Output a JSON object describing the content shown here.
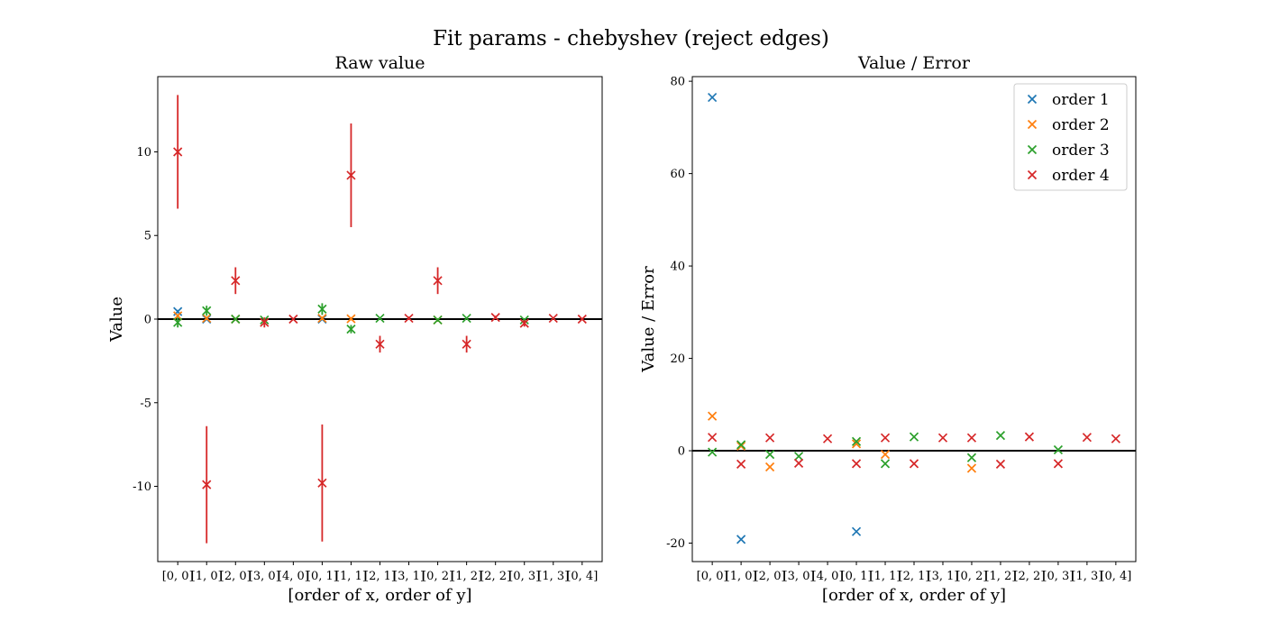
{
  "figure": {
    "suptitle": "Fit params - chebyshev (reject edges)"
  },
  "colors": {
    "order 1": "#1f77b4",
    "order 2": "#ff7f0e",
    "order 3": "#2ca02c",
    "order 4": "#d62728",
    "zero_line": "#000000"
  },
  "chart_data": [
    {
      "type": "scatter",
      "title": "Raw value",
      "xlabel": "[order of x, order of y]",
      "ylabel": "Value",
      "ylim": [
        -14.5,
        14.5
      ],
      "yticks": [
        -10,
        -5,
        0,
        5,
        10
      ],
      "grid": false,
      "zero_line": true,
      "categories": [
        "[0, 0]",
        "[1, 0]",
        "[2, 0]",
        "[3, 0]",
        "[4, 0]",
        "[0, 1]",
        "[1, 1]",
        "[2, 1]",
        "[3, 1]",
        "[0, 2]",
        "[1, 2]",
        "[2, 2]",
        "[0, 3]",
        "[1, 3]",
        "[0, 4]"
      ],
      "series": [
        {
          "name": "order 1",
          "values": [
            0.45,
            0.0,
            null,
            null,
            null,
            0.0,
            null,
            null,
            null,
            null,
            null,
            null,
            null,
            null,
            null
          ],
          "errors": [
            0.1,
            0.05,
            null,
            null,
            null,
            0.05,
            null,
            null,
            null,
            null,
            null,
            null,
            null,
            null,
            null
          ]
        },
        {
          "name": "order 2",
          "values": [
            0.2,
            0.05,
            0.0,
            null,
            null,
            0.05,
            0.02,
            null,
            null,
            -0.05,
            null,
            null,
            null,
            null,
            null
          ],
          "errors": [
            0.1,
            0.1,
            0.05,
            null,
            null,
            0.1,
            0.1,
            null,
            null,
            0.1,
            null,
            null,
            null,
            null,
            null
          ]
        },
        {
          "name": "order 3",
          "values": [
            -0.2,
            0.5,
            0.0,
            -0.05,
            null,
            0.6,
            -0.6,
            0.05,
            null,
            -0.05,
            0.05,
            null,
            -0.05,
            null,
            null
          ],
          "errors": [
            0.3,
            0.3,
            0.05,
            0.1,
            null,
            0.35,
            0.25,
            0.05,
            null,
            0.1,
            0.05,
            null,
            0.1,
            null,
            null
          ]
        },
        {
          "name": "order 4",
          "values": [
            10.0,
            -9.9,
            2.3,
            -0.2,
            0.0,
            -9.8,
            8.6,
            -1.5,
            0.05,
            2.3,
            -1.5,
            0.1,
            -0.25,
            0.05,
            0.0
          ],
          "errors": [
            3.4,
            3.5,
            0.8,
            0.3,
            0.05,
            3.5,
            3.1,
            0.5,
            0.1,
            0.8,
            0.5,
            0.1,
            0.2,
            0.05,
            0.05
          ]
        }
      ]
    },
    {
      "type": "scatter",
      "title": "Value / Error",
      "xlabel": "[order of x, order of y]",
      "ylabel": "Value / Error",
      "ylim": [
        -24,
        81
      ],
      "yticks": [
        -20,
        0,
        20,
        40,
        60,
        80
      ],
      "grid": false,
      "zero_line": true,
      "legend": "top-right",
      "categories": [
        "[0, 0]",
        "[1, 0]",
        "[2, 0]",
        "[3, 0]",
        "[4, 0]",
        "[0, 1]",
        "[1, 1]",
        "[2, 1]",
        "[3, 1]",
        "[0, 2]",
        "[1, 2]",
        "[2, 2]",
        "[0, 3]",
        "[1, 3]",
        "[0, 4]"
      ],
      "series": [
        {
          "name": "order 1",
          "values": [
            76.5,
            -19.2,
            null,
            null,
            null,
            -17.5,
            null,
            null,
            null,
            null,
            null,
            null,
            null,
            null,
            null
          ]
        },
        {
          "name": "order 2",
          "values": [
            7.5,
            1.0,
            -3.5,
            null,
            null,
            1.5,
            -0.8,
            null,
            null,
            -3.8,
            null,
            null,
            null,
            null,
            null
          ]
        },
        {
          "name": "order 3",
          "values": [
            -0.3,
            1.3,
            -0.8,
            -1.2,
            null,
            2.0,
            -2.8,
            3.0,
            null,
            -1.5,
            3.3,
            null,
            0.2,
            null,
            null
          ]
        },
        {
          "name": "order 4",
          "values": [
            2.9,
            -2.9,
            2.8,
            -2.7,
            2.6,
            -2.8,
            2.8,
            -2.8,
            2.8,
            2.8,
            -2.9,
            3.0,
            -2.8,
            2.9,
            2.6
          ]
        }
      ]
    }
  ]
}
